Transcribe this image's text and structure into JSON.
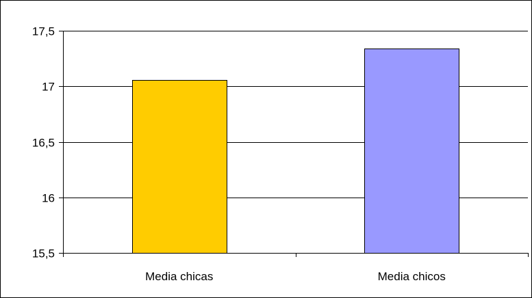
{
  "chart_data": {
    "type": "bar",
    "categories": [
      "Media chicas",
      "Media chicos"
    ],
    "values": [
      17.06,
      17.34
    ],
    "bar_colors": [
      "#FFCC00",
      "#9999FF"
    ],
    "ylim": [
      15.5,
      17.5
    ],
    "yticks": [
      15.5,
      16,
      16.5,
      17,
      17.5
    ],
    "ytick_labels": [
      "15,5",
      "16",
      "16,5",
      "17",
      "17,5"
    ],
    "grid": true,
    "title": "",
    "xlabel": "",
    "ylabel": "",
    "legend": "none"
  }
}
